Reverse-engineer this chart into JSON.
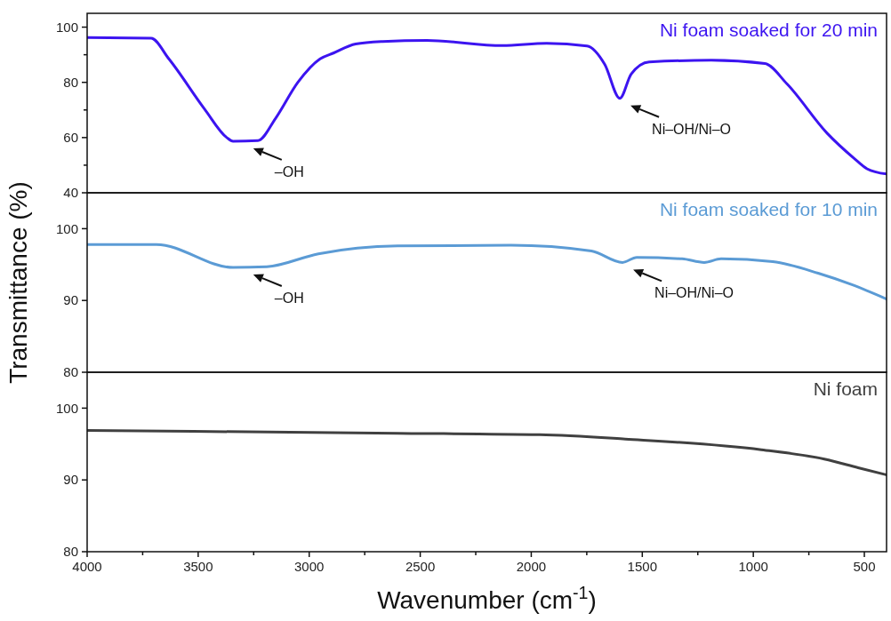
{
  "chart_data": [
    {
      "type": "line",
      "xlim": [
        4000,
        400
      ],
      "ylim": [
        40,
        105
      ],
      "yticks": [
        40,
        {
          "value": 50,
          "label": null
        },
        60,
        {
          "value": 70,
          "label": null
        },
        80,
        {
          "value": 90,
          "label": null
        },
        100
      ],
      "tick_labels": "y",
      "legend": "top right",
      "series": [
        {
          "name": "Ni foam soaked for 20 min",
          "color": "#3c14f0",
          "x": [
            4000,
            3712,
            3632,
            3471,
            3371,
            3343,
            3231,
            3151,
            3051,
            2951,
            2891,
            2791,
            2670,
            2470,
            2130,
            1930,
            1749,
            1669,
            1601,
            1550,
            1469,
            1189,
            948,
            848,
            668,
            548,
            488,
            400
          ],
          "values": [
            96.2,
            96,
            88.5,
            70.3,
            60,
            58.7,
            58.9,
            67,
            80,
            88.5,
            90.6,
            93.9,
            94.8,
            95.2,
            93.3,
            94.1,
            93.2,
            86.5,
            74.2,
            83,
            87.4,
            88,
            86.8,
            79.4,
            61.6,
            52.6,
            48.7,
            46.8
          ]
        }
      ],
      "annotations": [
        {
          "text": "–OH",
          "x": 3300,
          "y": 58.7
        },
        {
          "text": "Ni–OH/Ni–O",
          "x": 1601,
          "y": 74.2
        }
      ]
    },
    {
      "type": "line",
      "xlim": [
        4000,
        400
      ],
      "ylim": [
        80,
        105
      ],
      "yticks": [
        80,
        90,
        100
      ],
      "tick_labels": "y",
      "legend": "top right",
      "ylabel": "Transmittance (%)",
      "series": [
        {
          "name": "Ni foam soaked for 10 min",
          "color": "#5b9bd5",
          "x": [
            4000,
            3688,
            3343,
            3191,
            2959,
            2602,
            2090,
            1729,
            1589,
            1525,
            1321,
            1221,
            1145,
            912,
            708,
            556,
            400
          ],
          "values": [
            97.8,
            97.8,
            94.6,
            94.7,
            96.5,
            97.6,
            97.7,
            96.9,
            95.3,
            96,
            95.8,
            95.3,
            95.8,
            95.4,
            93.8,
            92.2,
            90.2
          ]
        }
      ],
      "annotations": [
        {
          "text": "–OH",
          "x": 3300,
          "y": 94.6
        },
        {
          "text": "Ni–OH/Ni–O",
          "x": 1589,
          "y": 95.3
        }
      ]
    },
    {
      "type": "line",
      "xlim": [
        4000,
        400
      ],
      "ylim": [
        80,
        105
      ],
      "yticks": [
        80,
        90,
        100
      ],
      "xticks": [
        4000,
        {
          "value": 3750,
          "label": null
        },
        3500,
        {
          "value": 3250,
          "label": null
        },
        3000,
        {
          "value": 2750,
          "label": null
        },
        2500,
        {
          "value": 2250,
          "label": null
        },
        2000,
        {
          "value": 1750,
          "label": null
        },
        1500,
        {
          "value": 1250,
          "label": null
        },
        1000,
        {
          "value": 750,
          "label": null
        },
        500
      ],
      "legend": "top right",
      "xlabel": "Wavenumber (cm$^{-1}$)",
      "series": [
        {
          "name": "Ni foam",
          "color": "#404040",
          "x": [
            4000,
            2602,
            1962,
            1577,
            964,
            680,
            528,
            400
          ],
          "values": [
            96.9,
            96.5,
            96.3,
            95.7,
            94.2,
            92.9,
            91.7,
            90.7
          ]
        }
      ]
    }
  ]
}
